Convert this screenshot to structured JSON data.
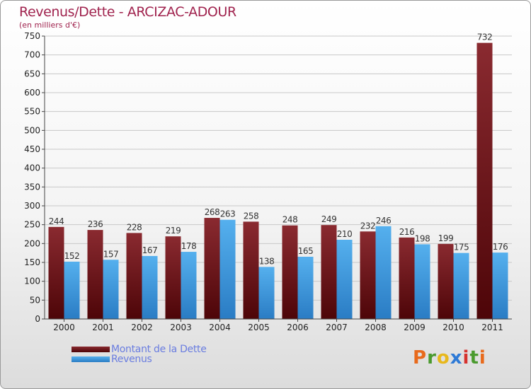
{
  "header": {
    "title": "Revenus/Dette - ARCIZAC-ADOUR",
    "subtitle": "(en milliers d'€)"
  },
  "chart_data": {
    "type": "bar",
    "title": "Revenus/Dette - ARCIZAC-ADOUR",
    "subtitle": "(en milliers d'€)",
    "categories": [
      "2000",
      "2001",
      "2002",
      "2003",
      "2004",
      "2005",
      "2006",
      "2007",
      "2008",
      "2009",
      "2010",
      "2011"
    ],
    "series": [
      {
        "name": "Montant de la Dette",
        "values": [
          244,
          236,
          228,
          219,
          268,
          258,
          248,
          249,
          232,
          216,
          199,
          732
        ],
        "color": "#7a1a1e"
      },
      {
        "name": "Revenus",
        "values": [
          152,
          157,
          167,
          178,
          263,
          138,
          165,
          210,
          246,
          198,
          175,
          176
        ],
        "color": "#3d97dc"
      }
    ],
    "ylim": [
      0,
      750
    ],
    "yticks": [
      0,
      50,
      100,
      150,
      200,
      250,
      300,
      350,
      400,
      450,
      500,
      550,
      600,
      650,
      700,
      750
    ],
    "grid": true,
    "legend_position": "bottom-left",
    "show_value_labels": true
  },
  "legend": {
    "items": [
      {
        "label": "Montant de la Dette",
        "color": "#7a1a1e"
      },
      {
        "label": "Revenus",
        "color": "#3d97dc"
      }
    ]
  },
  "logo": {
    "letters": [
      "P",
      "r",
      "o",
      "x",
      "i",
      "t",
      "i"
    ],
    "colors": [
      "#e86a1c",
      "#4a9a2e",
      "#e8b81c",
      "#2e7ad6",
      "#d6322e",
      "#4a9a2e",
      "#e86a1c"
    ]
  }
}
